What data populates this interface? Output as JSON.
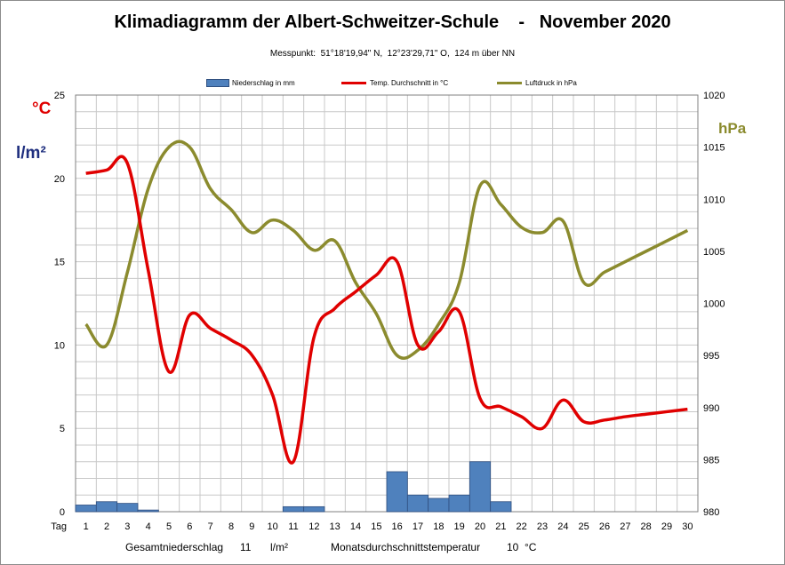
{
  "title": "Klimadiagramm der Albert-Schweitzer-Schule    -   November 2020",
  "subtitle": "Messpunkt:  51°18'19,94\" N,  12°23'29,71\" O,  124 m über NN",
  "unit_temp": "°C",
  "unit_precip": "l/m²",
  "unit_pressure": "hPa",
  "x_axis_prefix": "Tag",
  "footer": {
    "precip_label": "Gesamtniederschlag",
    "precip_value": "11",
    "precip_unit": "l/m²",
    "temp_label": "Monatsdurchschnittstemperatur",
    "temp_value": "10",
    "temp_unit": "°C"
  },
  "colors": {
    "precip": "#4f81bd",
    "temp": "#e00000",
    "pressure": "#8b8b2e",
    "grid": "#c8c8c8"
  },
  "chart_data": {
    "type": "bar",
    "x": [
      1,
      2,
      3,
      4,
      5,
      6,
      7,
      8,
      9,
      10,
      11,
      12,
      13,
      14,
      15,
      16,
      17,
      18,
      19,
      20,
      21,
      22,
      23,
      24,
      25,
      26,
      27,
      28,
      29,
      30
    ],
    "ylim_left": [
      0,
      25
    ],
    "yticks_left": [
      0,
      5,
      10,
      15,
      20,
      25
    ],
    "ylim_right": [
      980,
      1020
    ],
    "yticks_right": [
      980,
      985,
      990,
      995,
      1000,
      1005,
      1010,
      1015,
      1020
    ],
    "grid": true,
    "legend_position": "top",
    "series": [
      {
        "name": "Niederschlag in mm",
        "type": "bar",
        "axis": "left",
        "values": [
          0.4,
          0.6,
          0.5,
          0.1,
          0,
          0,
          0,
          0,
          0,
          0,
          0.3,
          0.3,
          0,
          0,
          0,
          2.4,
          1.0,
          0.8,
          1.0,
          3.0,
          0.6,
          0,
          0,
          0,
          0,
          0,
          0,
          0,
          0,
          0
        ]
      },
      {
        "name": "Temp. Durchschnitt in °C",
        "type": "line",
        "axis": "left",
        "values": [
          20.3,
          20.5,
          20.9,
          14.5,
          8.4,
          11.8,
          11.0,
          10.3,
          9.4,
          7.0,
          3.0,
          10.5,
          12.2,
          13.2,
          14.2,
          15.0,
          10.0,
          10.8,
          12.0,
          6.8,
          6.3,
          5.7,
          5.0,
          6.7,
          5.4,
          5.5,
          5.7,
          5.85,
          6.0,
          6.15
        ]
      },
      {
        "name": "Luftdruck in hPa",
        "type": "line",
        "axis": "right",
        "values": [
          998,
          996,
          1003,
          1011,
          1015,
          1015,
          1011,
          1009,
          1006.8,
          1008,
          1007,
          1005.1,
          1006,
          1002,
          999,
          995,
          995.5,
          998,
          1002,
          1011.3,
          1009.5,
          1007.3,
          1006.8,
          1007.9,
          1002,
          1003,
          1004,
          1005,
          1006,
          1007
        ]
      }
    ]
  }
}
